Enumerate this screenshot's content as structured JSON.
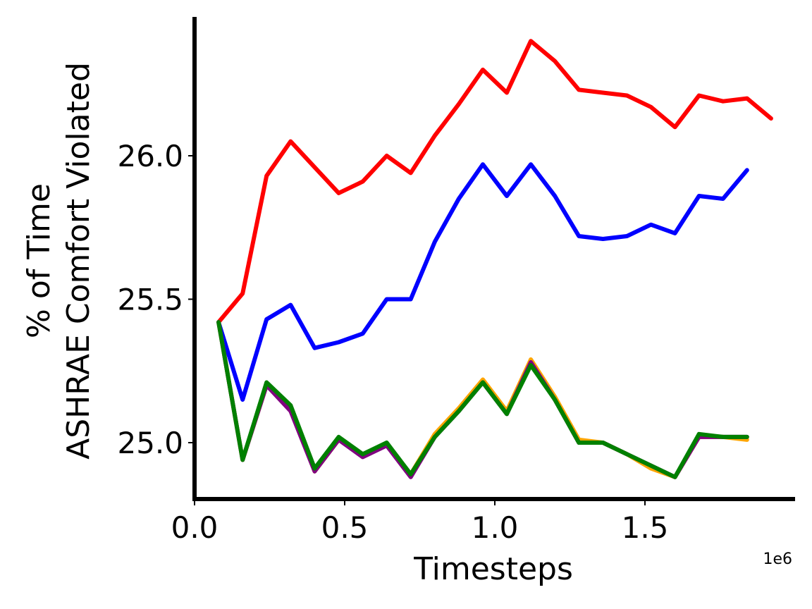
{
  "chart_data": {
    "type": "line",
    "xlabel": "Timesteps",
    "ylabel_line1": "% of Time",
    "ylabel_line2": "ASHRAE Comfort Violated",
    "x_offset_label": "1e6",
    "xlim": [
      0,
      2000000
    ],
    "ylim": [
      24.8,
      26.5
    ],
    "x_ticks": [
      0,
      500000,
      1000000,
      1500000
    ],
    "x_tick_labels": [
      "0.0",
      "0.5",
      "1.0",
      "1.5"
    ],
    "y_ticks": [
      25.0,
      25.5,
      26.0
    ],
    "y_tick_labels": [
      "25.0",
      "25.5",
      "26.0"
    ],
    "grid": false,
    "series": [
      {
        "color": "#ff0000",
        "x": [
          80000,
          160000,
          240000,
          320000,
          400000,
          480000,
          560000,
          640000,
          720000,
          800000,
          880000,
          960000,
          1040000,
          1120000,
          1200000,
          1280000,
          1360000,
          1440000,
          1520000,
          1600000,
          1680000,
          1760000,
          1840000,
          1920000
        ],
        "values": [
          25.42,
          25.52,
          25.93,
          26.05,
          25.96,
          25.87,
          25.91,
          26.0,
          25.94,
          26.07,
          26.18,
          26.3,
          26.22,
          26.4,
          26.33,
          26.23,
          26.22,
          26.21,
          26.17,
          26.1,
          26.21,
          26.19,
          26.2,
          26.13
        ]
      },
      {
        "color": "#0000ff",
        "x": [
          80000,
          160000,
          240000,
          320000,
          400000,
          480000,
          560000,
          640000,
          720000,
          800000,
          880000,
          960000,
          1040000,
          1120000,
          1200000,
          1280000,
          1360000,
          1440000,
          1520000,
          1600000,
          1680000,
          1760000,
          1840000
        ],
        "values": [
          25.42,
          25.15,
          25.43,
          25.48,
          25.33,
          25.35,
          25.38,
          25.5,
          25.5,
          25.7,
          25.85,
          25.97,
          25.86,
          25.97,
          25.86,
          25.72,
          25.71,
          25.72,
          25.76,
          25.73,
          25.86,
          25.85,
          25.95
        ]
      },
      {
        "color": "#ffa500",
        "x": [
          80000,
          160000,
          240000,
          320000,
          400000,
          480000,
          560000,
          640000,
          720000,
          800000,
          880000,
          960000,
          1040000,
          1120000,
          1200000,
          1280000,
          1360000,
          1440000,
          1520000,
          1600000,
          1680000,
          1760000,
          1840000
        ],
        "values": [
          25.42,
          24.94,
          25.2,
          25.12,
          24.9,
          25.01,
          24.96,
          24.99,
          24.89,
          25.03,
          25.12,
          25.22,
          25.11,
          25.29,
          25.16,
          25.01,
          25.0,
          24.96,
          24.91,
          24.88,
          25.02,
          25.02,
          25.01
        ]
      },
      {
        "color": "#800080",
        "x": [
          80000,
          160000,
          240000,
          320000,
          400000,
          480000,
          560000,
          640000,
          720000,
          800000,
          880000,
          960000,
          1040000,
          1120000,
          1200000,
          1280000,
          1360000,
          1440000,
          1520000,
          1600000,
          1680000,
          1760000,
          1840000
        ],
        "values": [
          25.42,
          24.94,
          25.2,
          25.11,
          24.9,
          25.01,
          24.95,
          24.99,
          24.88,
          25.02,
          25.11,
          25.21,
          25.1,
          25.28,
          25.15,
          25.0,
          25.0,
          24.96,
          24.92,
          24.88,
          25.02,
          25.02,
          25.02
        ]
      },
      {
        "color": "#008000",
        "x": [
          80000,
          160000,
          240000,
          320000,
          400000,
          480000,
          560000,
          640000,
          720000,
          800000,
          880000,
          960000,
          1040000,
          1120000,
          1200000,
          1280000,
          1360000,
          1440000,
          1520000,
          1600000,
          1680000,
          1760000,
          1840000
        ],
        "values": [
          25.42,
          24.94,
          25.21,
          25.13,
          24.91,
          25.02,
          24.96,
          25.0,
          24.89,
          25.02,
          25.11,
          25.21,
          25.1,
          25.27,
          25.15,
          25.0,
          25.0,
          24.96,
          24.92,
          24.88,
          25.03,
          25.02,
          25.02
        ]
      }
    ]
  }
}
